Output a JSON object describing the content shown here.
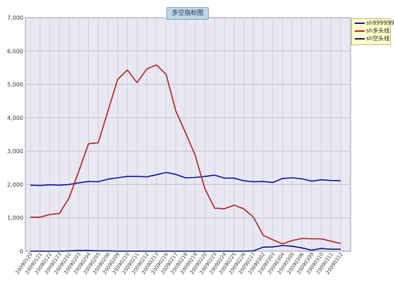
{
  "chart_data": {
    "type": "line",
    "title": "多空指标图",
    "xlabel": "",
    "ylabel": "",
    "ylim": [
      0,
      7000
    ],
    "yticks": [
      0,
      1000,
      2000,
      3000,
      4000,
      5000,
      6000,
      7000
    ],
    "ytick_labels": [
      "0",
      "1,000",
      "2,000",
      "3,000",
      "4,000",
      "5,000",
      "6,000",
      "7,000"
    ],
    "grid": true,
    "legend_position": "top-right",
    "categories": [
      "20090120",
      "20090121",
      "20090122",
      "20090123",
      "20090202",
      "20090203",
      "20090204",
      "20090205",
      "20090206",
      "20090209",
      "20090210",
      "20090211",
      "20090212",
      "20090213",
      "20090216",
      "20090217",
      "20090218",
      "20090219",
      "20090220",
      "20090223",
      "20090224",
      "20090225",
      "20090226",
      "20090227",
      "20090302",
      "20090303",
      "20090304",
      "20090305",
      "20090306",
      "20090309",
      "20090310",
      "20090311",
      "20090312"
    ],
    "series": [
      {
        "name": "sh999999",
        "color": "#1010a0",
        "values": [
          1980,
          1970,
          1990,
          1980,
          2000,
          2050,
          2090,
          2080,
          2160,
          2200,
          2240,
          2240,
          2230,
          2290,
          2360,
          2300,
          2200,
          2210,
          2240,
          2280,
          2190,
          2190,
          2110,
          2080,
          2090,
          2060,
          2180,
          2200,
          2170,
          2100,
          2140,
          2120,
          2110
        ]
      },
      {
        "name": "sh多头线",
        "color": "#b02020",
        "values": [
          1020,
          1020,
          1100,
          1130,
          1600,
          2400,
          3220,
          3250,
          4200,
          5150,
          5430,
          5050,
          5460,
          5580,
          5300,
          4200,
          3550,
          2870,
          1870,
          1290,
          1270,
          1380,
          1270,
          1020,
          480,
          340,
          220,
          320,
          380,
          370,
          370,
          300,
          230
        ]
      },
      {
        "name": "sh空头线",
        "color": "#101080",
        "values": [
          0,
          0,
          0,
          0,
          10,
          20,
          20,
          10,
          10,
          0,
          0,
          0,
          0,
          0,
          0,
          0,
          0,
          0,
          0,
          0,
          0,
          0,
          0,
          10,
          120,
          130,
          170,
          150,
          100,
          30,
          80,
          60,
          60
        ]
      }
    ]
  }
}
